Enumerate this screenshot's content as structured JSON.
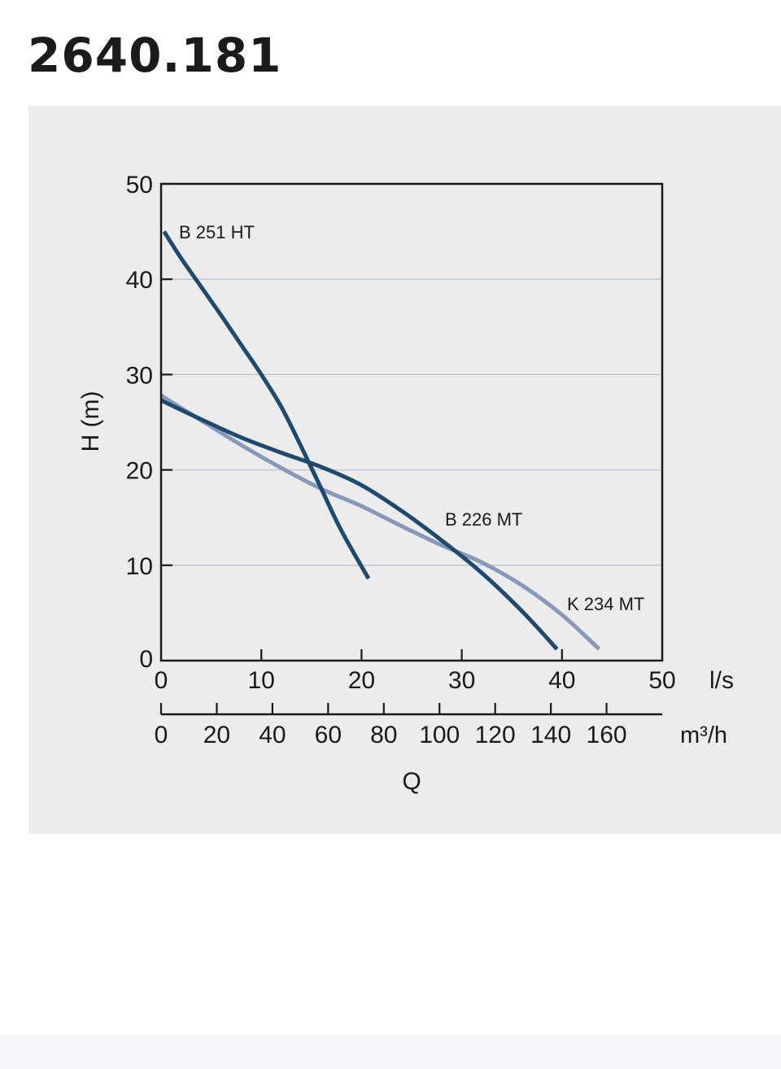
{
  "page": {
    "title": "2640.181"
  },
  "chart_data": {
    "type": "line",
    "title": "",
    "xlabel": "Q",
    "ylabel": "H (m)",
    "xlim": [
      0,
      50
    ],
    "ylim": [
      0,
      50
    ],
    "x_unit": "l/s",
    "secondary_x_unit": "m³/h",
    "x_ticks": [
      "0",
      "10",
      "20",
      "30",
      "40",
      "50"
    ],
    "y_ticks": [
      "0",
      "10",
      "20",
      "30",
      "40",
      "50"
    ],
    "secondary_x_ticks": [
      "0",
      "20",
      "40",
      "60",
      "80",
      "100",
      "120",
      "140",
      "160"
    ],
    "secondary_x_values": [
      0,
      20,
      40,
      60,
      80,
      100,
      120,
      140,
      160
    ],
    "grid": "horizontal",
    "series": [
      {
        "name": "B 251 HT",
        "color": "#1d4a6e",
        "x": [
          0.3,
          2,
          4,
          6,
          8,
          10,
          12,
          14,
          16,
          18,
          20.7
        ],
        "y": [
          45,
          42.2,
          39.2,
          36.2,
          33.1,
          30,
          26.6,
          22.4,
          18,
          13.6,
          8.6
        ]
      },
      {
        "name": "B 226 MT",
        "color": "#1d4a6e",
        "x": [
          0,
          4,
          8,
          12,
          16,
          20,
          24,
          28,
          32,
          36,
          39.5
        ],
        "y": [
          27.3,
          25.3,
          23.4,
          21.8,
          20.3,
          18.4,
          15.7,
          12.6,
          9.2,
          5.2,
          1.2
        ]
      },
      {
        "name": "K 234 MT",
        "color": "#8799b9",
        "x": [
          0,
          4,
          8,
          12,
          16,
          20,
          24,
          28,
          32,
          36,
          40,
          43.7
        ],
        "y": [
          27.8,
          25.2,
          22.6,
          20.2,
          18,
          16.2,
          14.1,
          12.1,
          10.3,
          7.9,
          4.8,
          1.2
        ]
      }
    ]
  }
}
